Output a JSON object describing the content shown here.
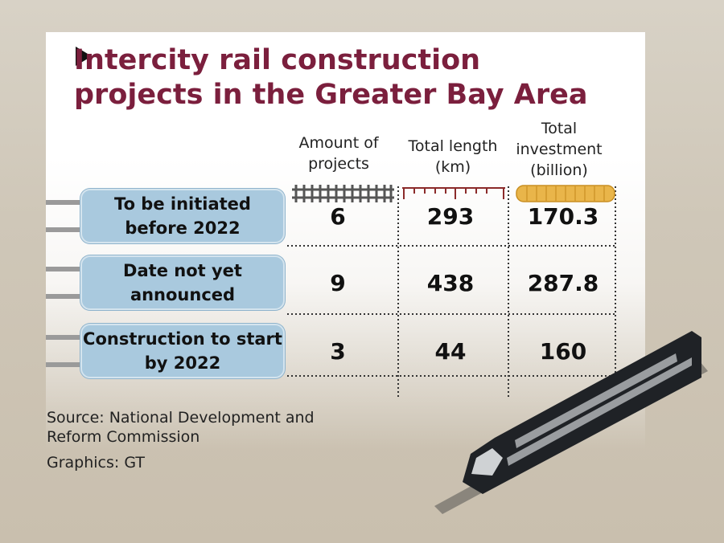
{
  "title": [
    "Intercity rail construction",
    "projects in the Greater Bay Area"
  ],
  "columns": [
    "Amount of projects",
    "Total length (km)",
    "Total investment (billion)"
  ],
  "rows": [
    {
      "label": "To be initiated before 2022",
      "values": [
        6,
        293,
        170.3
      ]
    },
    {
      "label": "Date not yet announced",
      "values": [
        9,
        438,
        287.8
      ]
    },
    {
      "label": "Construction to start by 2022",
      "values": [
        3,
        44,
        160
      ]
    }
  ],
  "source": "Source: National Development and Reform Commission",
  "credit": "Graphics: GT"
}
